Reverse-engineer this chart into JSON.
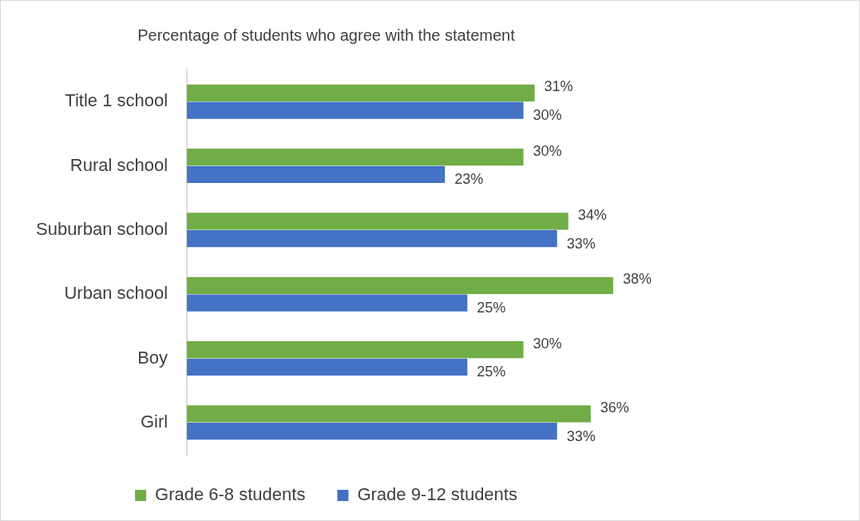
{
  "chart_data": {
    "type": "bar",
    "orientation": "horizontal",
    "title": "Percentage of students who agree with the statement",
    "categories": [
      "Title 1 school",
      "Rural school",
      "Suburban school",
      "Urban school",
      "Boy",
      "Girl"
    ],
    "series": [
      {
        "name": "Grade 6-8 students",
        "color": "#70ad47",
        "values": [
          31,
          30,
          34,
          38,
          30,
          36
        ],
        "value_labels": [
          "31%",
          "30%",
          "34%",
          "38%",
          "30%",
          "36%"
        ]
      },
      {
        "name": "Grade 9-12 students",
        "color": "#4472c4",
        "values": [
          30,
          23,
          33,
          25,
          25,
          33
        ],
        "value_labels": [
          "30%",
          "23%",
          "33%",
          "25%",
          "25%",
          "33%"
        ]
      }
    ],
    "tick_labels": "y",
    "grid": false,
    "legend": "bottom"
  }
}
